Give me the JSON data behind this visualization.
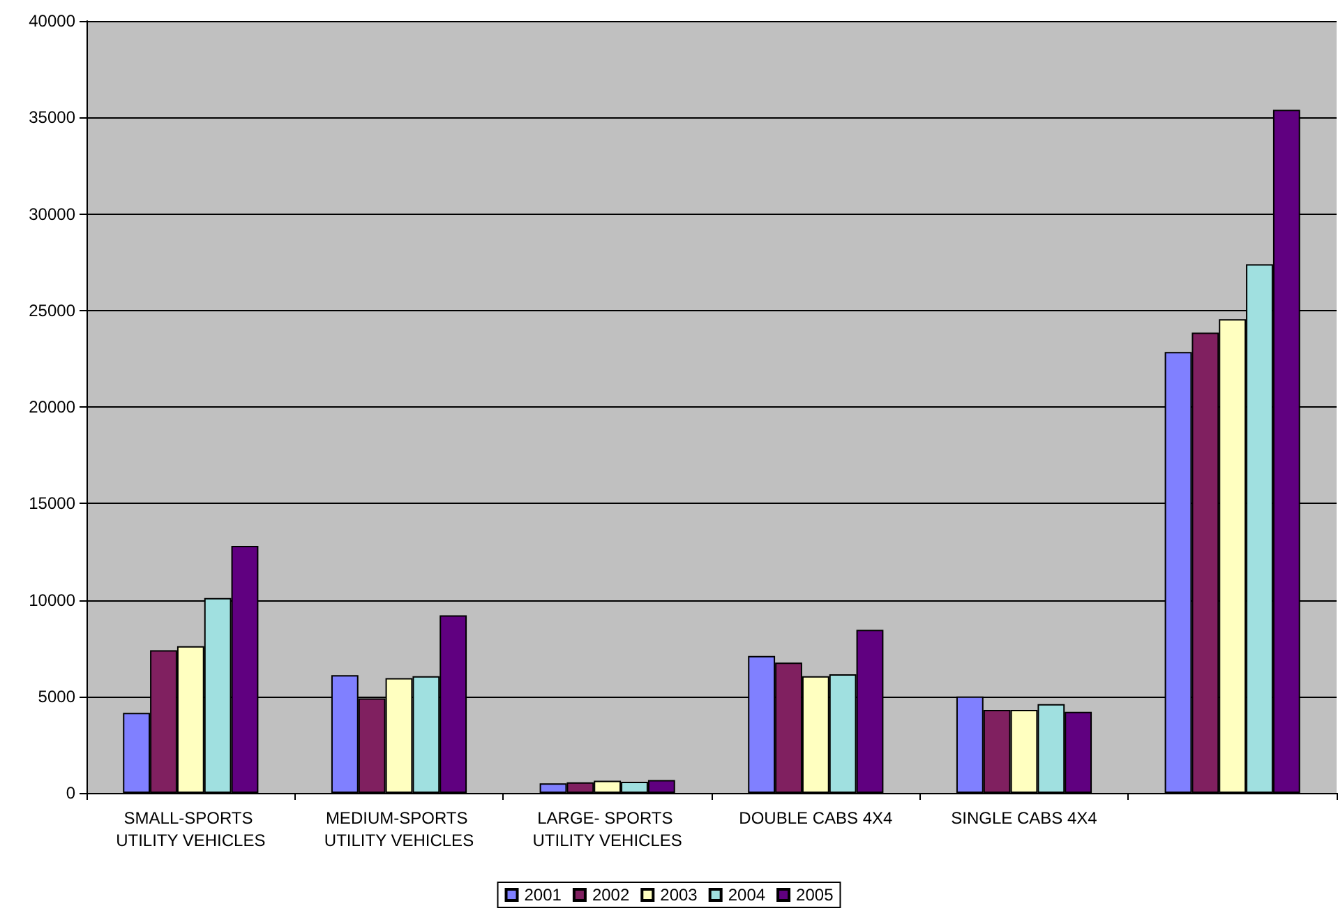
{
  "chart_data": {
    "type": "bar",
    "categories": [
      "SMALL-SPORTS UTILITY VEHICLES",
      "MEDIUM-SPORTS UTILITY VEHICLES",
      "LARGE- SPORTS UTILITY VEHICLES",
      "DOUBLE CABS 4X4",
      "SINGLE CABS 4X4",
      null
    ],
    "series": [
      {
        "name": "2001",
        "color": "#8080ff",
        "values": [
          4150,
          6100,
          500,
          7100,
          5000,
          22850
        ]
      },
      {
        "name": "2002",
        "color": "#802060",
        "values": [
          7400,
          4900,
          550,
          6750,
          4300,
          23850
        ]
      },
      {
        "name": "2003",
        "color": "#ffffc0",
        "values": [
          7600,
          5950,
          630,
          6050,
          4300,
          24550
        ]
      },
      {
        "name": "2004",
        "color": "#a0e0e0",
        "values": [
          10100,
          6050,
          580,
          6150,
          4600,
          27400
        ]
      },
      {
        "name": "2005",
        "color": "#600080",
        "values": [
          12800,
          9200,
          670,
          8450,
          4200,
          35400
        ]
      }
    ],
    "ylim": [
      0,
      40000
    ],
    "yticks": [
      0,
      5000,
      10000,
      15000,
      20000,
      25000,
      30000,
      35000,
      40000
    ],
    "grid": "y",
    "legend": "bottom"
  }
}
